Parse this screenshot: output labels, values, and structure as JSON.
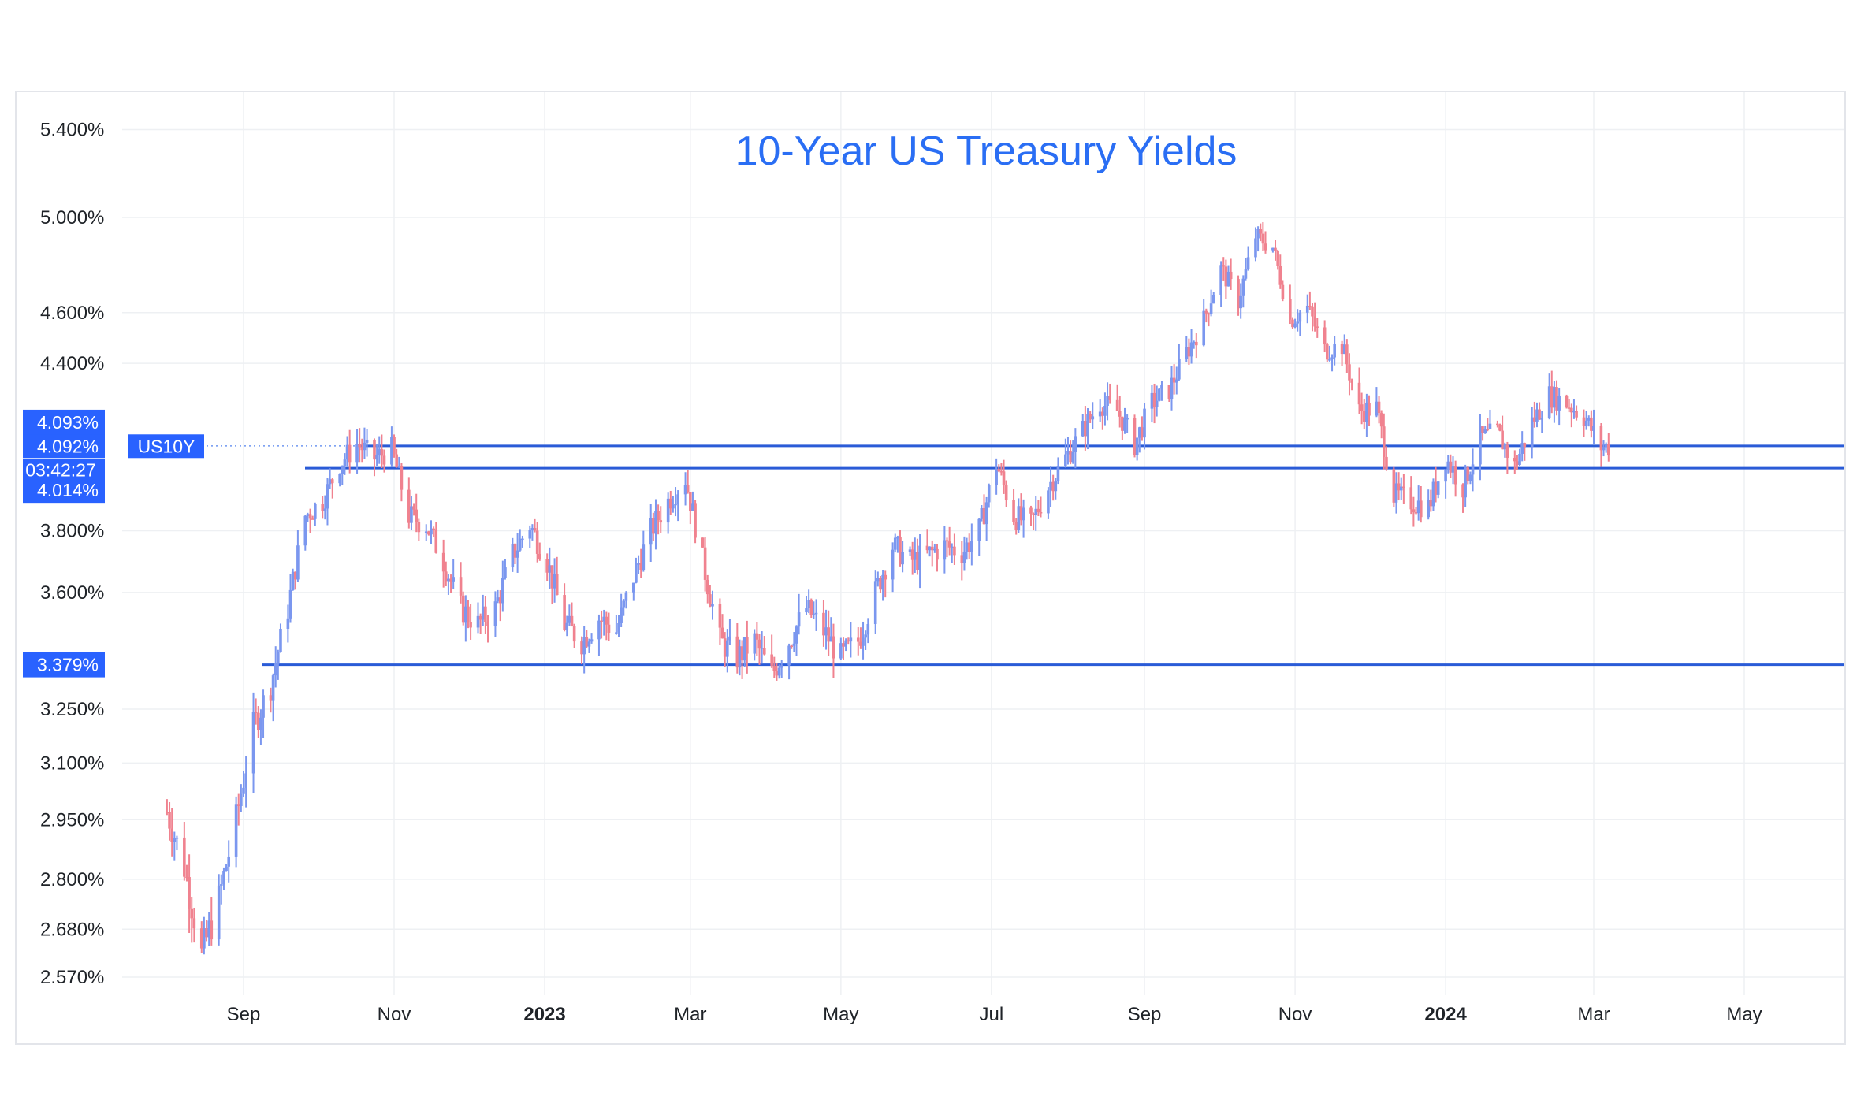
{
  "chart_data": {
    "type": "candlestick",
    "title": "10-Year US Treasury Yields",
    "symbol": "US10Y",
    "countdown": "03:42:27",
    "last_price": "4.092%",
    "price_tags": [
      {
        "label": "4.093%",
        "value": 4.093
      },
      {
        "label": "4.092%",
        "value": 4.092
      },
      {
        "label": "4.014%",
        "value": 4.014
      },
      {
        "label": "3.379%",
        "value": 3.379
      }
    ],
    "horizontal_lines": [
      4.093,
      4.014,
      3.379
    ],
    "y_scale": "log",
    "y_ticks": [
      {
        "label": "5.400%",
        "value": 5.4
      },
      {
        "label": "5.000%",
        "value": 5.0
      },
      {
        "label": "4.600%",
        "value": 4.6
      },
      {
        "label": "4.400%",
        "value": 4.4
      },
      {
        "label": "3.800%",
        "value": 3.8
      },
      {
        "label": "3.600%",
        "value": 3.6
      },
      {
        "label": "3.250%",
        "value": 3.25
      },
      {
        "label": "3.100%",
        "value": 3.1
      },
      {
        "label": "2.950%",
        "value": 2.95
      },
      {
        "label": "2.800%",
        "value": 2.8
      },
      {
        "label": "2.680%",
        "value": 2.68
      },
      {
        "label": "2.570%",
        "value": 2.57
      }
    ],
    "x_ticks": [
      {
        "label": "Sep",
        "date": "2022-09-01",
        "bold": false
      },
      {
        "label": "Nov",
        "date": "2022-11-01",
        "bold": false
      },
      {
        "label": "2023",
        "date": "2023-01-01",
        "bold": true
      },
      {
        "label": "Mar",
        "date": "2023-03-01",
        "bold": false
      },
      {
        "label": "May",
        "date": "2023-05-01",
        "bold": false
      },
      {
        "label": "Jul",
        "date": "2023-07-01",
        "bold": false
      },
      {
        "label": "Sep",
        "date": "2023-09-01",
        "bold": false
      },
      {
        "label": "Nov",
        "date": "2023-11-01",
        "bold": false
      },
      {
        "label": "2024",
        "date": "2024-01-01",
        "bold": true
      },
      {
        "label": "Mar",
        "date": "2024-03-01",
        "bold": false
      },
      {
        "label": "May",
        "date": "2024-05-01",
        "bold": false
      }
    ],
    "series": [
      {
        "points": [
          [
            "2022-08-01",
            2.97
          ],
          [
            "2022-08-08",
            2.83
          ],
          [
            "2022-08-15",
            2.62
          ],
          [
            "2022-08-22",
            2.75
          ],
          [
            "2022-08-29",
            2.95
          ],
          [
            "2022-09-05",
            3.2
          ],
          [
            "2022-09-12",
            3.32
          ],
          [
            "2022-09-19",
            3.55
          ],
          [
            "2022-09-26",
            3.85
          ],
          [
            "2022-10-03",
            3.9
          ],
          [
            "2022-10-10",
            4.03
          ],
          [
            "2022-10-17",
            4.1
          ],
          [
            "2022-10-24",
            4.05
          ],
          [
            "2022-10-31",
            4.08
          ],
          [
            "2022-11-07",
            3.85
          ],
          [
            "2022-11-14",
            3.82
          ],
          [
            "2022-11-21",
            3.7
          ],
          [
            "2022-11-28",
            3.55
          ],
          [
            "2022-12-05",
            3.5
          ],
          [
            "2022-12-12",
            3.55
          ],
          [
            "2022-12-19",
            3.72
          ],
          [
            "2022-12-26",
            3.82
          ],
          [
            "2023-01-02",
            3.7
          ],
          [
            "2023-01-09",
            3.5
          ],
          [
            "2023-01-16",
            3.45
          ],
          [
            "2023-01-23",
            3.52
          ],
          [
            "2023-01-30",
            3.48
          ],
          [
            "2023-02-06",
            3.65
          ],
          [
            "2023-02-13",
            3.8
          ],
          [
            "2023-02-20",
            3.9
          ],
          [
            "2023-02-27",
            3.98
          ],
          [
            "2023-03-06",
            3.7
          ],
          [
            "2023-03-13",
            3.45
          ],
          [
            "2023-03-20",
            3.4
          ],
          [
            "2023-03-27",
            3.45
          ],
          [
            "2023-04-03",
            3.35
          ],
          [
            "2023-04-10",
            3.45
          ],
          [
            "2023-04-17",
            3.55
          ],
          [
            "2023-04-24",
            3.48
          ],
          [
            "2023-05-01",
            3.4
          ],
          [
            "2023-05-08",
            3.45
          ],
          [
            "2023-05-15",
            3.6
          ],
          [
            "2023-05-22",
            3.75
          ],
          [
            "2023-05-29",
            3.7
          ],
          [
            "2023-06-05",
            3.72
          ],
          [
            "2023-06-12",
            3.75
          ],
          [
            "2023-06-19",
            3.73
          ],
          [
            "2023-06-26",
            3.8
          ],
          [
            "2023-07-03",
            4.03
          ],
          [
            "2023-07-10",
            3.85
          ],
          [
            "2023-07-17",
            3.82
          ],
          [
            "2023-07-24",
            3.95
          ],
          [
            "2023-07-31",
            4.05
          ],
          [
            "2023-08-07",
            4.15
          ],
          [
            "2023-08-14",
            4.25
          ],
          [
            "2023-08-21",
            4.22
          ],
          [
            "2023-08-28",
            4.1
          ],
          [
            "2023-09-04",
            4.25
          ],
          [
            "2023-09-11",
            4.3
          ],
          [
            "2023-09-18",
            4.44
          ],
          [
            "2023-09-25",
            4.57
          ],
          [
            "2023-10-02",
            4.78
          ],
          [
            "2023-10-09",
            4.65
          ],
          [
            "2023-10-16",
            4.92
          ],
          [
            "2023-10-23",
            4.87
          ],
          [
            "2023-10-30",
            4.57
          ],
          [
            "2023-11-06",
            4.62
          ],
          [
            "2023-11-13",
            4.45
          ],
          [
            "2023-11-20",
            4.47
          ],
          [
            "2023-11-27",
            4.22
          ],
          [
            "2023-12-04",
            4.23
          ],
          [
            "2023-12-11",
            3.92
          ],
          [
            "2023-12-18",
            3.9
          ],
          [
            "2023-12-25",
            3.88
          ],
          [
            "2024-01-01",
            4.05
          ],
          [
            "2024-01-08",
            3.95
          ],
          [
            "2024-01-15",
            4.12
          ],
          [
            "2024-01-22",
            4.14
          ],
          [
            "2024-01-29",
            4.02
          ],
          [
            "2024-02-05",
            4.18
          ],
          [
            "2024-02-12",
            4.28
          ],
          [
            "2024-02-19",
            4.25
          ],
          [
            "2024-02-26",
            4.2
          ],
          [
            "2024-03-04",
            4.09
          ]
        ]
      }
    ]
  }
}
